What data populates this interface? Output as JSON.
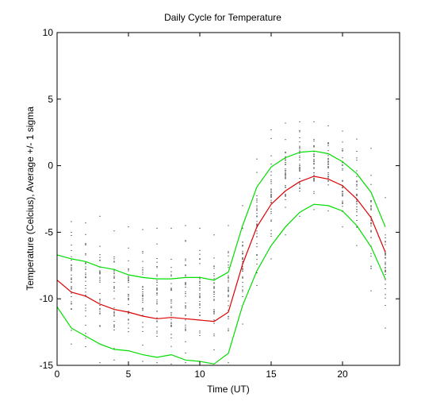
{
  "chart_data": {
    "type": "line",
    "title": "Daily Cycle for Temperature",
    "xlabel": "Time (UT)",
    "ylabel": "Temperature (Celcius), Average +/- 1 sigma",
    "xlim": [
      0,
      24
    ],
    "ylim": [
      -15,
      10
    ],
    "xticks": [
      0,
      5,
      10,
      15,
      20
    ],
    "yticks": [
      -15,
      -10,
      -5,
      0,
      5,
      10
    ],
    "grid": false,
    "x": [
      0,
      1,
      2,
      3,
      4,
      5,
      6,
      7,
      8,
      9,
      10,
      11,
      12,
      13,
      14,
      15,
      16,
      17,
      18,
      19,
      20,
      21,
      22,
      23
    ],
    "series": [
      {
        "color": "#00dd00",
        "values": [
          -6.7,
          -7.0,
          -7.2,
          -7.6,
          -7.8,
          -8.2,
          -8.4,
          -8.5,
          -8.5,
          -8.4,
          -8.4,
          -8.6,
          -8.0,
          -4.5,
          -1.6,
          -0.1,
          0.6,
          1.0,
          1.1,
          0.9,
          0.3,
          -0.6,
          -2.0,
          -4.6
        ]
      },
      {
        "color": "#dd0000",
        "values": [
          -8.6,
          -9.5,
          -9.8,
          -10.4,
          -10.8,
          -11.0,
          -11.3,
          -11.5,
          -11.4,
          -11.5,
          -11.6,
          -11.7,
          -11.0,
          -7.4,
          -4.6,
          -2.9,
          -1.9,
          -1.2,
          -0.8,
          -1.0,
          -1.5,
          -2.5,
          -3.9,
          -6.5
        ]
      },
      {
        "color": "#00dd00",
        "values": [
          -10.6,
          -12.2,
          -12.8,
          -13.4,
          -13.8,
          -13.9,
          -14.2,
          -14.4,
          -14.2,
          -14.6,
          -14.7,
          -14.9,
          -14.1,
          -10.5,
          -7.9,
          -6.0,
          -4.6,
          -3.5,
          -2.9,
          -3.0,
          -3.4,
          -4.5,
          -6.1,
          -8.5
        ]
      }
    ],
    "scatter": {
      "color": "#000000",
      "min": [
        -10.8,
        -13.4,
        -13.6,
        -14.8,
        -14.6,
        -14.8,
        -14.7,
        -14.8,
        -14.9,
        -14.8,
        -14.8,
        -14.9,
        -14.8,
        -11.9,
        -9.0,
        -7.0,
        -5.2,
        -3.8,
        -3.3,
        -3.4,
        -4.6,
        -6.0,
        -9.4,
        -12.2
      ],
      "max": [
        -5.2,
        -4.2,
        -4.3,
        -3.8,
        -4.9,
        -4.6,
        -4.8,
        -4.7,
        -4.7,
        -4.5,
        -4.7,
        -5.2,
        -4.5,
        -3.0,
        0.5,
        2.7,
        3.2,
        3.3,
        3.3,
        3.0,
        2.6,
        2.0,
        1.3,
        -2.4
      ]
    }
  }
}
